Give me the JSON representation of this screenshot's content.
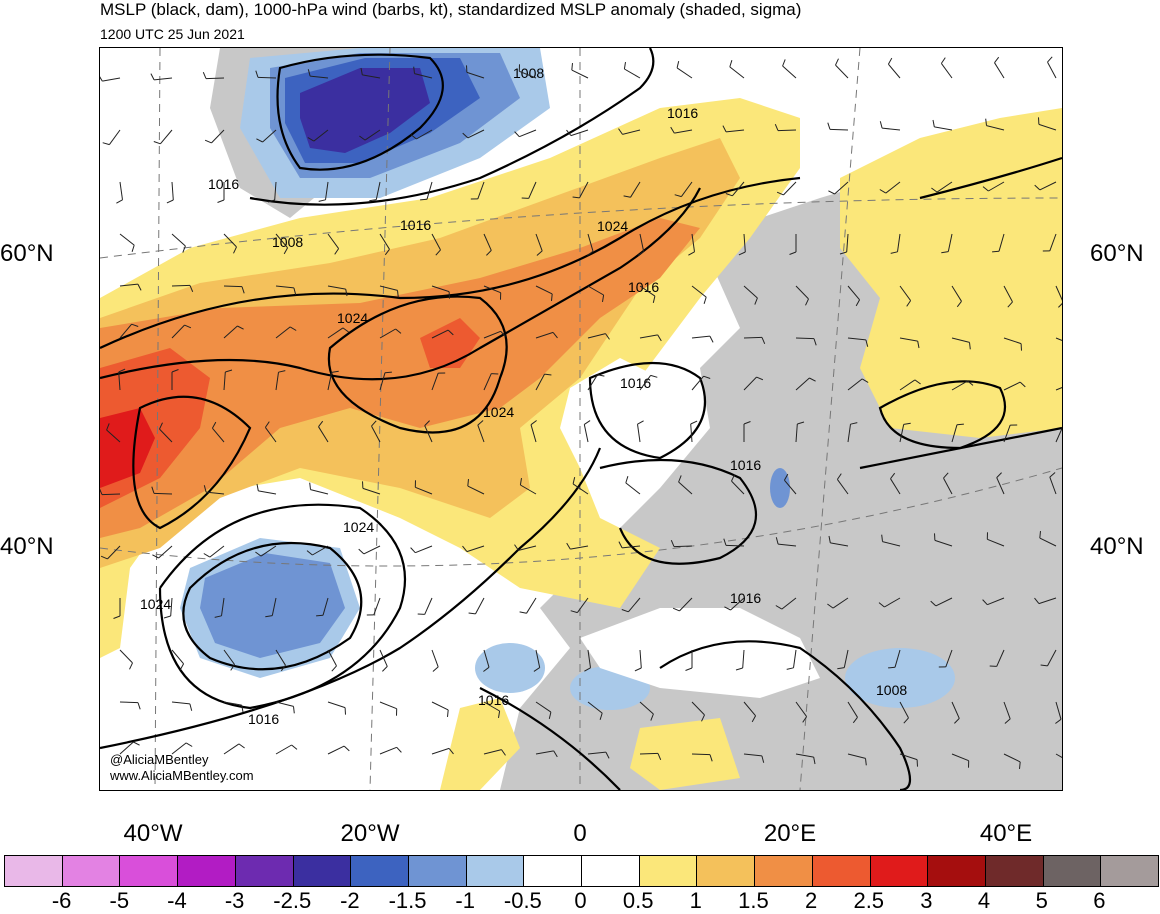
{
  "title": "MSLP (black, dam), 1000-hPa wind (barbs, kt), standardized MSLP anomaly (shaded, sigma)",
  "valid_time": "1200 UTC 25 Jun 2021",
  "credits": {
    "handle": "@AliciaMBentley",
    "website": "www.AliciaMBentley.com"
  },
  "lat_labels": [
    "60°N",
    "40°N"
  ],
  "lon_labels": [
    "40°W",
    "20°W",
    "0",
    "20°E",
    "40°E"
  ],
  "isobar_labels": [
    "1008",
    "1016",
    "1016",
    "1008",
    "1016",
    "1024",
    "1016",
    "1024",
    "1016",
    "1024",
    "1016",
    "1016",
    "1024",
    "1024",
    "1016",
    "1016",
    "1008"
  ],
  "colorbar": {
    "labels": [
      "-6",
      "-5",
      "-4",
      "-3",
      "-2.5",
      "-2",
      "-1.5",
      "-1",
      "-0.5",
      "0",
      "0.5",
      "1",
      "1.5",
      "2",
      "2.5",
      "3",
      "4",
      "5",
      "6"
    ],
    "colors": [
      "#e9b8e8",
      "#e382e3",
      "#d94fda",
      "#b21cc4",
      "#6d2bb0",
      "#3b2fa0",
      "#3d63c0",
      "#6f94d3",
      "#a9c9e9",
      "#ffffff",
      "#ffffff",
      "#fbe77a",
      "#f4c15b",
      "#f08f45",
      "#ed5a30",
      "#e01b1b",
      "#a50e0e",
      "#6f2a2a",
      "#6d6363",
      "#a49b9b"
    ]
  },
  "colors": {
    "land_neutral": "#c8c8c8",
    "isobar": "#000000",
    "barb": "#222222"
  }
}
